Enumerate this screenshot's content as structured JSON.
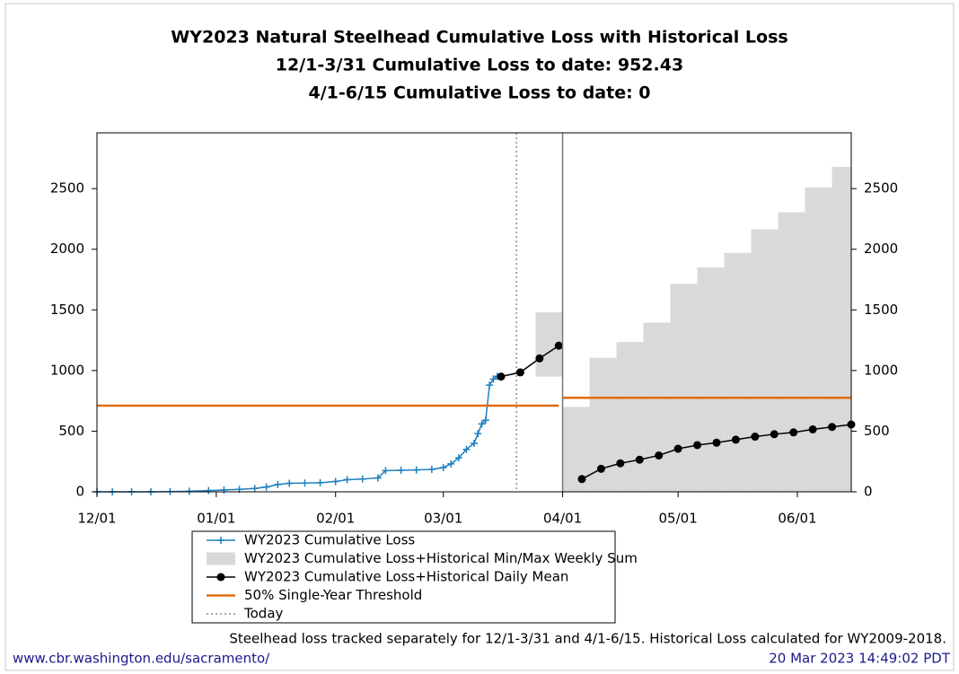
{
  "chart_data": {
    "type": "line",
    "title": [
      "WY2023 Natural Steelhead Cumulative Loss with Historical Loss",
      "12/1-3/31 Cumulative Loss to date: 952.43",
      "4/1-6/15 Cumulative Loss to date: 0"
    ],
    "xlim": [
      "12/01",
      "06/15"
    ],
    "xticks": [
      "12/01",
      "01/01",
      "02/01",
      "03/01",
      "04/01",
      "05/01",
      "06/01"
    ],
    "ylim": [
      0,
      2960
    ],
    "yticks": [
      0,
      500,
      1000,
      1500,
      2000,
      2500
    ],
    "divider": "04/01",
    "series": [
      {
        "name": "WY2023 Cumulative Loss",
        "kind": "line",
        "marker": "plus",
        "color": "#1f7fc0",
        "x": [
          "12/01",
          "12/05",
          "12/10",
          "12/15",
          "12/20",
          "12/25",
          "12/30",
          "01/03",
          "01/07",
          "01/11",
          "01/14",
          "01/17",
          "01/20",
          "01/24",
          "01/28",
          "02/01",
          "02/04",
          "02/08",
          "02/12",
          "02/14",
          "02/18",
          "02/22",
          "02/26",
          "03/01",
          "03/03",
          "03/05",
          "03/07",
          "03/09",
          "03/10",
          "03/11",
          "03/12",
          "03/13",
          "03/14",
          "03/15"
        ],
        "values": [
          0,
          0,
          0,
          0,
          2,
          5,
          10,
          15,
          20,
          28,
          40,
          60,
          70,
          72,
          75,
          85,
          100,
          105,
          115,
          175,
          178,
          180,
          185,
          200,
          230,
          280,
          350,
          400,
          480,
          560,
          590,
          880,
          930,
          952.43
        ]
      },
      {
        "name": "WY2023 Cumulative Loss+Historical Min/Max Weekly Sum",
        "kind": "band",
        "color": "#d9d9d9",
        "x_start": [
          "03/25",
          "04/01",
          "04/08",
          "04/15",
          "04/22",
          "04/29",
          "05/06",
          "05/13",
          "05/20",
          "05/27",
          "06/03",
          "06/10"
        ],
        "x_end": [
          "04/01",
          "04/08",
          "04/15",
          "04/22",
          "04/29",
          "05/06",
          "05/13",
          "05/20",
          "05/27",
          "06/03",
          "06/10",
          "06/15"
        ],
        "low": [
          950,
          0,
          0,
          0,
          0,
          0,
          0,
          0,
          0,
          0,
          0,
          0
        ],
        "high": [
          1480,
          700,
          1105,
          1235,
          1395,
          1715,
          1850,
          1970,
          2165,
          2305,
          2510,
          2680
        ]
      },
      {
        "name": "WY2023 Cumulative Loss+Historical Daily Mean",
        "kind": "line",
        "marker": "circle",
        "color": "#000000",
        "x": [
          "03/16",
          "03/21",
          "03/26",
          "03/31",
          "04/01",
          "04/06",
          "04/11",
          "04/16",
          "04/21",
          "04/26",
          "05/01",
          "05/06",
          "05/11",
          "05/16",
          "05/21",
          "05/26",
          "05/31",
          "06/05",
          "06/10",
          "06/15"
        ],
        "values": [
          950,
          985,
          1100,
          1205,
          null,
          105,
          190,
          235,
          265,
          300,
          355,
          385,
          405,
          430,
          455,
          475,
          490,
          515,
          535,
          555
        ]
      },
      {
        "name": "50% Single-Year Threshold",
        "kind": "line",
        "marker": "none",
        "color": "#e06c10",
        "x": [
          "12/01",
          "03/31",
          "04/01",
          "04/01",
          "06/15"
        ],
        "values": [
          710,
          710,
          null,
          775,
          775
        ]
      },
      {
        "name": "Today",
        "kind": "vline",
        "color": "#555555",
        "x": "03/20"
      }
    ],
    "note": "Steelhead loss tracked separately for 12/1-3/31 and 4/1-6/15. Historical Loss calculated for WY2009-2018.",
    "source": "www.cbr.washington.edu/sacramento/",
    "timestamp": "20 Mar 2023 14:49:02 PDT"
  }
}
